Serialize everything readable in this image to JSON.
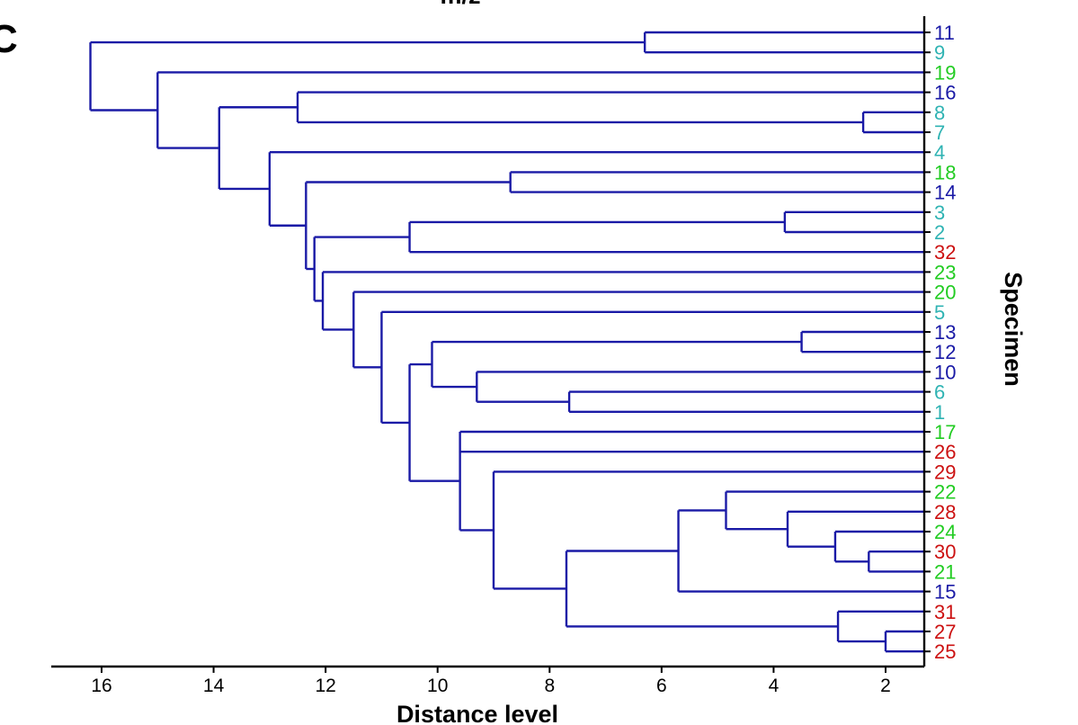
{
  "panel_letter": "C",
  "chart_data": {
    "type": "dendrogram",
    "title": "m/z",
    "xlabel": "Distance level",
    "ylabel": "Specimen",
    "x_ticks": [
      16,
      14,
      12,
      10,
      8,
      6,
      4,
      2
    ],
    "xlim": [
      17.0,
      1.3
    ],
    "grid": false,
    "group_colors": {
      "blue": "#1a1aa6",
      "teal": "#2fb3b3",
      "green": "#22cc22",
      "red": "#cc1111"
    },
    "leaves": [
      {
        "label": "11",
        "group": "blue"
      },
      {
        "label": "9",
        "group": "teal"
      },
      {
        "label": "19",
        "group": "green"
      },
      {
        "label": "16",
        "group": "blue"
      },
      {
        "label": "8",
        "group": "teal"
      },
      {
        "label": "7",
        "group": "teal"
      },
      {
        "label": "4",
        "group": "teal"
      },
      {
        "label": "18",
        "group": "green"
      },
      {
        "label": "14",
        "group": "blue"
      },
      {
        "label": "3",
        "group": "teal"
      },
      {
        "label": "2",
        "group": "teal"
      },
      {
        "label": "32",
        "group": "red"
      },
      {
        "label": "23",
        "group": "green"
      },
      {
        "label": "20",
        "group": "green"
      },
      {
        "label": "5",
        "group": "teal"
      },
      {
        "label": "13",
        "group": "blue"
      },
      {
        "label": "12",
        "group": "blue"
      },
      {
        "label": "10",
        "group": "blue"
      },
      {
        "label": "6",
        "group": "teal"
      },
      {
        "label": "1",
        "group": "teal"
      },
      {
        "label": "17",
        "group": "green"
      },
      {
        "label": "26",
        "group": "red"
      },
      {
        "label": "29",
        "group": "red"
      },
      {
        "label": "22",
        "group": "green"
      },
      {
        "label": "28",
        "group": "red"
      },
      {
        "label": "24",
        "group": "green"
      },
      {
        "label": "30",
        "group": "red"
      },
      {
        "label": "21",
        "group": "green"
      },
      {
        "label": "15",
        "group": "blue"
      },
      {
        "label": "31",
        "group": "red"
      },
      {
        "label": "27",
        "group": "red"
      },
      {
        "label": "25",
        "group": "red"
      }
    ],
    "merges": [
      {
        "id": "A",
        "height": 6.3,
        "children": [
          "11",
          "9"
        ]
      },
      {
        "id": "B",
        "height": 2.4,
        "children": [
          "8",
          "7"
        ]
      },
      {
        "id": "C",
        "height": 12.5,
        "children": [
          "16",
          "B"
        ]
      },
      {
        "id": "D",
        "height": 8.7,
        "children": [
          "18",
          "14"
        ]
      },
      {
        "id": "E",
        "height": 3.8,
        "children": [
          "3",
          "2"
        ]
      },
      {
        "id": "F",
        "height": 10.5,
        "children": [
          "E",
          "32"
        ]
      },
      {
        "id": "G",
        "height": 3.5,
        "children": [
          "13",
          "12"
        ]
      },
      {
        "id": "H",
        "height": 7.65,
        "children": [
          "6",
          "1"
        ]
      },
      {
        "id": "I",
        "height": 9.3,
        "children": [
          "10",
          "H"
        ]
      },
      {
        "id": "J",
        "height": 10.1,
        "children": [
          "G",
          "I"
        ]
      },
      {
        "id": "K",
        "height": 2.3,
        "children": [
          "30",
          "21"
        ]
      },
      {
        "id": "L",
        "height": 2.9,
        "children": [
          "24",
          "K"
        ]
      },
      {
        "id": "M",
        "height": 3.75,
        "children": [
          "28",
          "L"
        ]
      },
      {
        "id": "N",
        "height": 4.85,
        "children": [
          "22",
          "M"
        ]
      },
      {
        "id": "O",
        "height": 5.7,
        "children": [
          "N",
          "15"
        ]
      },
      {
        "id": "P",
        "height": 2.0,
        "children": [
          "27",
          "25"
        ]
      },
      {
        "id": "Q",
        "height": 2.85,
        "children": [
          "31",
          "P"
        ]
      },
      {
        "id": "R",
        "height": 7.7,
        "children": [
          "O",
          "Q"
        ]
      },
      {
        "id": "S",
        "height": 9.0,
        "children": [
          "29",
          "R"
        ]
      },
      {
        "id": "T",
        "height": 9.6,
        "children": [
          "17",
          "26",
          "S"
        ]
      },
      {
        "id": "U",
        "height": 10.5,
        "children": [
          "J",
          "T"
        ]
      },
      {
        "id": "V",
        "height": 11.0,
        "children": [
          "5",
          "U"
        ]
      },
      {
        "id": "W",
        "height": 11.5,
        "children": [
          "20",
          "V"
        ]
      },
      {
        "id": "X",
        "height": 12.05,
        "children": [
          "23",
          "W"
        ]
      },
      {
        "id": "Y",
        "height": 12.2,
        "children": [
          "F",
          "X"
        ]
      },
      {
        "id": "Z",
        "height": 12.35,
        "children": [
          "D",
          "Y"
        ]
      },
      {
        "id": "AA",
        "height": 13.0,
        "children": [
          "4",
          "Z"
        ]
      },
      {
        "id": "AB",
        "height": 13.9,
        "children": [
          "C",
          "AA"
        ]
      },
      {
        "id": "AC",
        "height": 15.0,
        "children": [
          "19",
          "AB"
        ]
      },
      {
        "id": "AD",
        "height": 16.2,
        "children": [
          "A",
          "AC"
        ]
      }
    ]
  }
}
